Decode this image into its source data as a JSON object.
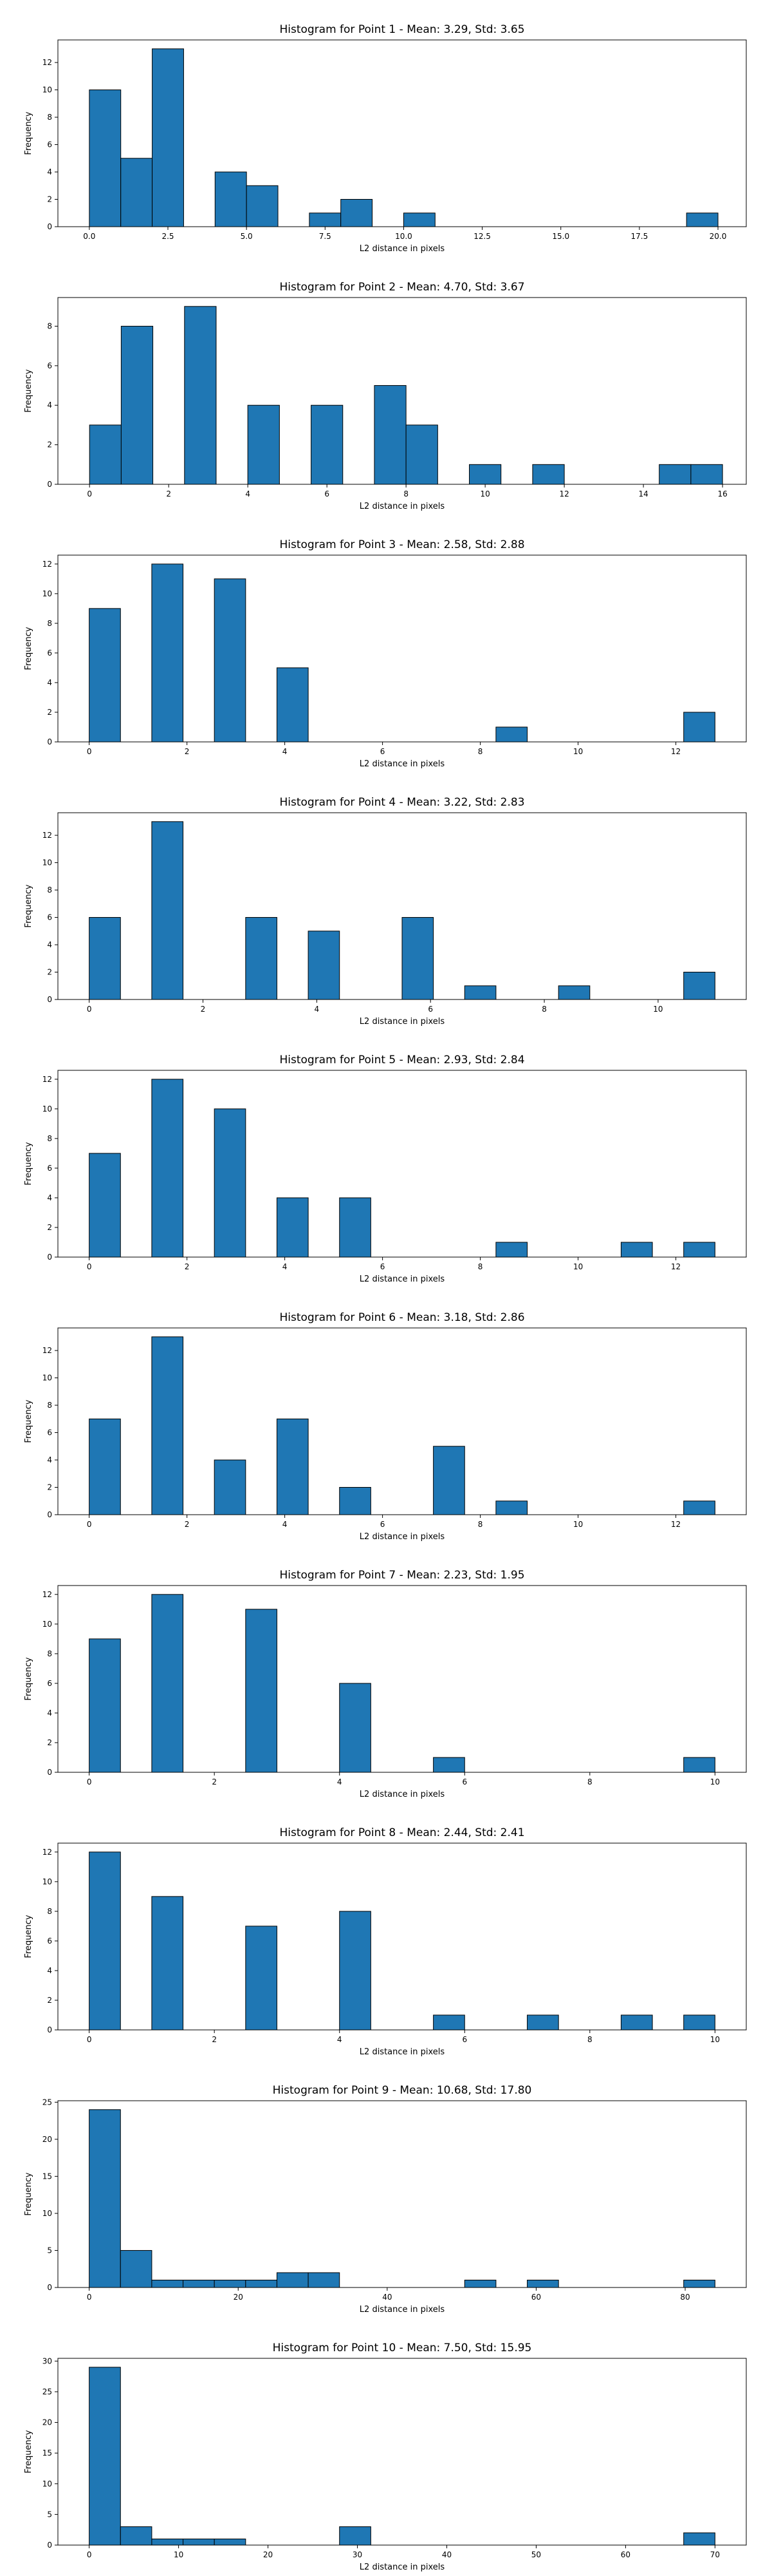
{
  "chart_data": [
    {
      "type": "bar",
      "title": "Histogram for Point 1 - Mean: 3.29, Std: 3.65",
      "xlabel": "L2 distance in pixels",
      "ylabel": "Frequency",
      "xlim": [
        -1.0,
        20.9
      ],
      "ylim": [
        0,
        13.65
      ],
      "xticks": [
        0.0,
        2.5,
        5.0,
        7.5,
        10.0,
        12.5,
        15.0,
        17.5,
        20.0
      ],
      "xtick_labels": [
        "0.0",
        "2.5",
        "5.0",
        "7.5",
        "10.0",
        "12.5",
        "15.0",
        "17.5",
        "20.0"
      ],
      "yticks": [
        0,
        2,
        4,
        6,
        8,
        10,
        12
      ],
      "grid": false,
      "bins": [
        {
          "x0": 0.0,
          "x1": 1.0,
          "count": 10
        },
        {
          "x0": 1.0,
          "x1": 2.0,
          "count": 5
        },
        {
          "x0": 2.0,
          "x1": 3.0,
          "count": 13
        },
        {
          "x0": 4.0,
          "x1": 5.0,
          "count": 4
        },
        {
          "x0": 5.0,
          "x1": 6.0,
          "count": 3
        },
        {
          "x0": 7.0,
          "x1": 8.0,
          "count": 1
        },
        {
          "x0": 8.0,
          "x1": 9.0,
          "count": 2
        },
        {
          "x0": 10.0,
          "x1": 11.0,
          "count": 1
        },
        {
          "x0": 19.0,
          "x1": 20.0,
          "count": 1
        }
      ]
    },
    {
      "type": "bar",
      "title": "Histogram for Point 2 - Mean: 4.70, Std: 3.67",
      "xlabel": "L2 distance in pixels",
      "ylabel": "Frequency",
      "xlim": [
        -0.8,
        16.6
      ],
      "ylim": [
        0,
        9.45
      ],
      "xticks": [
        0,
        2,
        4,
        6,
        8,
        10,
        12,
        14,
        16
      ],
      "xtick_labels": [
        "0",
        "2",
        "4",
        "6",
        "8",
        "10",
        "12",
        "14",
        "16"
      ],
      "yticks": [
        0,
        2,
        4,
        6,
        8
      ],
      "grid": false,
      "bins": [
        {
          "x0": 0.0,
          "x1": 0.8,
          "count": 3
        },
        {
          "x0": 0.8,
          "x1": 1.6,
          "count": 8
        },
        {
          "x0": 2.4,
          "x1": 3.2,
          "count": 9
        },
        {
          "x0": 4.0,
          "x1": 4.8,
          "count": 4
        },
        {
          "x0": 5.6,
          "x1": 6.4,
          "count": 4
        },
        {
          "x0": 7.2,
          "x1": 8.0,
          "count": 5
        },
        {
          "x0": 8.0,
          "x1": 8.8,
          "count": 3
        },
        {
          "x0": 9.6,
          "x1": 10.4,
          "count": 1
        },
        {
          "x0": 11.2,
          "x1": 12.0,
          "count": 1
        },
        {
          "x0": 14.4,
          "x1": 15.2,
          "count": 1
        },
        {
          "x0": 15.2,
          "x1": 16.0,
          "count": 1
        }
      ]
    },
    {
      "type": "bar",
      "title": "Histogram for Point 3 - Mean: 2.58, Std: 2.88",
      "xlabel": "L2 distance in pixels",
      "ylabel": "Frequency",
      "xlim": [
        -0.64,
        13.44
      ],
      "ylim": [
        0,
        12.6
      ],
      "xticks": [
        0,
        2,
        4,
        6,
        8,
        10,
        12
      ],
      "xtick_labels": [
        "0",
        "2",
        "4",
        "6",
        "8",
        "10",
        "12"
      ],
      "yticks": [
        0,
        2,
        4,
        6,
        8,
        10,
        12
      ],
      "grid": false,
      "bins": [
        {
          "x0": 0.0,
          "x1": 0.64,
          "count": 9
        },
        {
          "x0": 1.28,
          "x1": 1.92,
          "count": 12
        },
        {
          "x0": 2.56,
          "x1": 3.2,
          "count": 11
        },
        {
          "x0": 3.84,
          "x1": 4.48,
          "count": 5
        },
        {
          "x0": 8.32,
          "x1": 8.96,
          "count": 1
        },
        {
          "x0": 12.16,
          "x1": 12.8,
          "count": 2
        }
      ]
    },
    {
      "type": "bar",
      "title": "Histogram for Point 4 - Mean: 3.22, Std: 2.83",
      "xlabel": "L2 distance in pixels",
      "ylabel": "Frequency",
      "xlim": [
        -0.55,
        11.55
      ],
      "ylim": [
        0,
        13.65
      ],
      "xticks": [
        0,
        2,
        4,
        6,
        8,
        10
      ],
      "xtick_labels": [
        "0",
        "2",
        "4",
        "6",
        "8",
        "10"
      ],
      "yticks": [
        0,
        2,
        4,
        6,
        8,
        10,
        12
      ],
      "grid": false,
      "bins": [
        {
          "x0": 0.0,
          "x1": 0.55,
          "count": 6
        },
        {
          "x0": 1.1,
          "x1": 1.65,
          "count": 13
        },
        {
          "x0": 2.75,
          "x1": 3.3,
          "count": 6
        },
        {
          "x0": 3.85,
          "x1": 4.4,
          "count": 5
        },
        {
          "x0": 5.5,
          "x1": 6.05,
          "count": 6
        },
        {
          "x0": 6.6,
          "x1": 7.15,
          "count": 1
        },
        {
          "x0": 8.25,
          "x1": 8.8,
          "count": 1
        },
        {
          "x0": 10.45,
          "x1": 11.0,
          "count": 2
        }
      ]
    },
    {
      "type": "bar",
      "title": "Histogram for Point 5 - Mean: 2.93, Std: 2.84",
      "xlabel": "L2 distance in pixels",
      "ylabel": "Frequency",
      "xlim": [
        -0.64,
        13.44
      ],
      "ylim": [
        0,
        12.6
      ],
      "xticks": [
        0,
        2,
        4,
        6,
        8,
        10,
        12
      ],
      "xtick_labels": [
        "0",
        "2",
        "4",
        "6",
        "8",
        "10",
        "12"
      ],
      "yticks": [
        0,
        2,
        4,
        6,
        8,
        10,
        12
      ],
      "grid": false,
      "bins": [
        {
          "x0": 0.0,
          "x1": 0.64,
          "count": 7
        },
        {
          "x0": 1.28,
          "x1": 1.92,
          "count": 12
        },
        {
          "x0": 2.56,
          "x1": 3.2,
          "count": 10
        },
        {
          "x0": 3.84,
          "x1": 4.48,
          "count": 4
        },
        {
          "x0": 5.12,
          "x1": 5.76,
          "count": 4
        },
        {
          "x0": 8.32,
          "x1": 8.96,
          "count": 1
        },
        {
          "x0": 10.88,
          "x1": 11.52,
          "count": 1
        },
        {
          "x0": 12.16,
          "x1": 12.8,
          "count": 1
        }
      ]
    },
    {
      "type": "bar",
      "title": "Histogram for Point 6 - Mean: 3.18, Std: 2.86",
      "xlabel": "L2 distance in pixels",
      "ylabel": "Frequency",
      "xlim": [
        -0.64,
        13.44
      ],
      "ylim": [
        0,
        13.65
      ],
      "xticks": [
        0,
        2,
        4,
        6,
        8,
        10,
        12
      ],
      "xtick_labels": [
        "0",
        "2",
        "4",
        "6",
        "8",
        "10",
        "12"
      ],
      "yticks": [
        0,
        2,
        4,
        6,
        8,
        10,
        12
      ],
      "grid": false,
      "bins": [
        {
          "x0": 0.0,
          "x1": 0.64,
          "count": 7
        },
        {
          "x0": 1.28,
          "x1": 1.92,
          "count": 13
        },
        {
          "x0": 2.56,
          "x1": 3.2,
          "count": 4
        },
        {
          "x0": 3.84,
          "x1": 4.48,
          "count": 7
        },
        {
          "x0": 5.12,
          "x1": 5.76,
          "count": 2
        },
        {
          "x0": 7.04,
          "x1": 7.68,
          "count": 5
        },
        {
          "x0": 8.32,
          "x1": 8.96,
          "count": 1
        },
        {
          "x0": 12.16,
          "x1": 12.8,
          "count": 1
        }
      ]
    },
    {
      "type": "bar",
      "title": "Histogram for Point 7 - Mean: 2.23, Std: 1.95",
      "xlabel": "L2 distance in pixels",
      "ylabel": "Frequency",
      "xlim": [
        -0.5,
        10.5
      ],
      "ylim": [
        0,
        12.6
      ],
      "xticks": [
        0,
        2,
        4,
        6,
        8,
        10
      ],
      "xtick_labels": [
        "0",
        "2",
        "4",
        "6",
        "8",
        "10"
      ],
      "yticks": [
        0,
        2,
        4,
        6,
        8,
        10,
        12
      ],
      "grid": false,
      "bins": [
        {
          "x0": 0.0,
          "x1": 0.5,
          "count": 9
        },
        {
          "x0": 1.0,
          "x1": 1.5,
          "count": 12
        },
        {
          "x0": 2.5,
          "x1": 3.0,
          "count": 11
        },
        {
          "x0": 4.0,
          "x1": 4.5,
          "count": 6
        },
        {
          "x0": 5.5,
          "x1": 6.0,
          "count": 1
        },
        {
          "x0": 9.5,
          "x1": 10.0,
          "count": 1
        }
      ]
    },
    {
      "type": "bar",
      "title": "Histogram for Point 8 - Mean: 2.44, Std: 2.41",
      "xlabel": "L2 distance in pixels",
      "ylabel": "Frequency",
      "xlim": [
        -0.5,
        10.5
      ],
      "ylim": [
        0,
        12.6
      ],
      "xticks": [
        0,
        2,
        4,
        6,
        8,
        10
      ],
      "xtick_labels": [
        "0",
        "2",
        "4",
        "6",
        "8",
        "10"
      ],
      "yticks": [
        0,
        2,
        4,
        6,
        8,
        10,
        12
      ],
      "grid": false,
      "bins": [
        {
          "x0": 0.0,
          "x1": 0.5,
          "count": 12
        },
        {
          "x0": 1.0,
          "x1": 1.5,
          "count": 9
        },
        {
          "x0": 2.5,
          "x1": 3.0,
          "count": 7
        },
        {
          "x0": 4.0,
          "x1": 4.5,
          "count": 8
        },
        {
          "x0": 5.5,
          "x1": 6.0,
          "count": 1
        },
        {
          "x0": 7.0,
          "x1": 7.5,
          "count": 1
        },
        {
          "x0": 8.5,
          "x1": 9.0,
          "count": 1
        },
        {
          "x0": 9.5,
          "x1": 10.0,
          "count": 1
        }
      ]
    },
    {
      "type": "bar",
      "title": "Histogram for Point 9 - Mean: 10.68, Std: 17.80",
      "xlabel": "L2 distance in pixels",
      "ylabel": "Frequency",
      "xlim": [
        -4.2,
        88.2
      ],
      "ylim": [
        0,
        25.2
      ],
      "xticks": [
        0,
        20,
        40,
        60,
        80
      ],
      "xtick_labels": [
        "0",
        "20",
        "40",
        "60",
        "80"
      ],
      "yticks": [
        0,
        5,
        10,
        15,
        20,
        25
      ],
      "grid": false,
      "bins": [
        {
          "x0": 0.0,
          "x1": 4.2,
          "count": 24
        },
        {
          "x0": 4.2,
          "x1": 8.4,
          "count": 5
        },
        {
          "x0": 8.4,
          "x1": 12.6,
          "count": 1
        },
        {
          "x0": 12.6,
          "x1": 16.8,
          "count": 1
        },
        {
          "x0": 16.8,
          "x1": 21.0,
          "count": 1
        },
        {
          "x0": 21.0,
          "x1": 25.2,
          "count": 1
        },
        {
          "x0": 25.2,
          "x1": 29.4,
          "count": 2
        },
        {
          "x0": 29.4,
          "x1": 33.6,
          "count": 2
        },
        {
          "x0": 50.4,
          "x1": 54.6,
          "count": 1
        },
        {
          "x0": 58.8,
          "x1": 63.0,
          "count": 1
        },
        {
          "x0": 79.8,
          "x1": 84.0,
          "count": 1
        }
      ]
    },
    {
      "type": "bar",
      "title": "Histogram for Point 10 - Mean: 7.50, Std: 15.95",
      "xlabel": "L2 distance in pixels",
      "ylabel": "Frequency",
      "xlim": [
        -3.5,
        73.5
      ],
      "ylim": [
        0,
        30.45
      ],
      "xticks": [
        0,
        10,
        20,
        30,
        40,
        50,
        60,
        70
      ],
      "xtick_labels": [
        "0",
        "10",
        "20",
        "30",
        "40",
        "50",
        "60",
        "70"
      ],
      "yticks": [
        0,
        5,
        10,
        15,
        20,
        25,
        30
      ],
      "grid": false,
      "bins": [
        {
          "x0": 0.0,
          "x1": 3.5,
          "count": 29
        },
        {
          "x0": 3.5,
          "x1": 7.0,
          "count": 3
        },
        {
          "x0": 7.0,
          "x1": 10.5,
          "count": 1
        },
        {
          "x0": 10.5,
          "x1": 14.0,
          "count": 1
        },
        {
          "x0": 14.0,
          "x1": 17.5,
          "count": 1
        },
        {
          "x0": 28.0,
          "x1": 31.5,
          "count": 3
        },
        {
          "x0": 66.5,
          "x1": 70.0,
          "count": 2
        }
      ]
    }
  ]
}
